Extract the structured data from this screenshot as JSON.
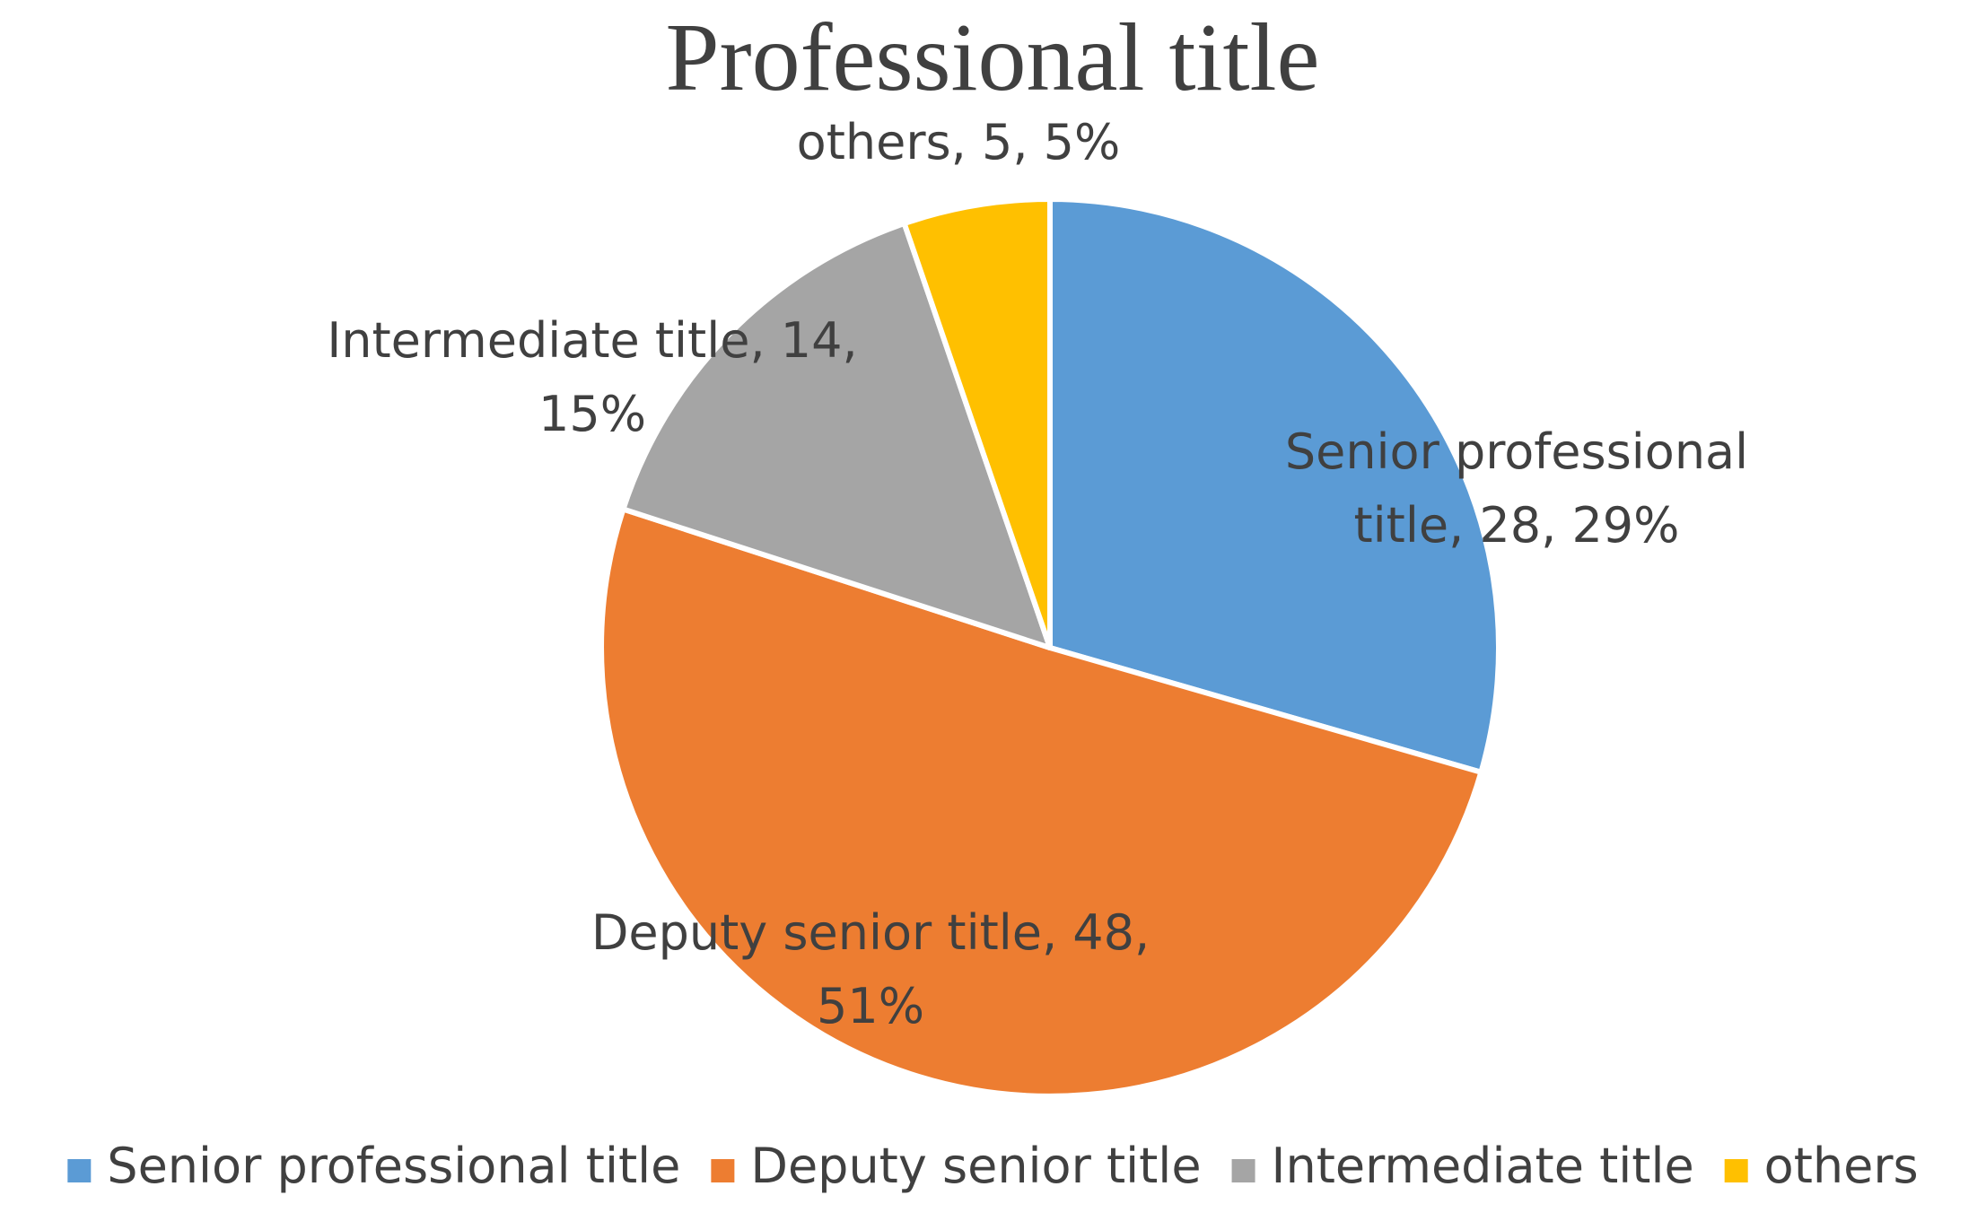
{
  "chart_data": {
    "type": "pie",
    "title": "Professional title",
    "legend_position": "bottom",
    "series": [
      {
        "values": [
          28,
          48,
          14,
          5
        ],
        "categories": [
          "Senior professional title",
          "Deputy senior title",
          "Intermediate title",
          "others"
        ]
      }
    ],
    "slices": [
      {
        "label": "Senior professional title",
        "value": 28,
        "percent": "29%",
        "color": "#5b9bd5",
        "data_label": [
          "Senior professional",
          "title, 28, 29%"
        ]
      },
      {
        "label": "Deputy senior title",
        "value": 48,
        "percent": "51%",
        "color": "#ed7d31",
        "data_label": [
          "Deputy senior title, 48,",
          "51%"
        ]
      },
      {
        "label": "Intermediate title",
        "value": 14,
        "percent": "15%",
        "color": "#a5a5a5",
        "data_label": [
          "Intermediate title, 14,",
          "15%"
        ]
      },
      {
        "label": "others",
        "value": 5,
        "percent": "5%",
        "color": "#ffc000",
        "data_label": [
          "others, 5, 5%"
        ]
      }
    ]
  }
}
